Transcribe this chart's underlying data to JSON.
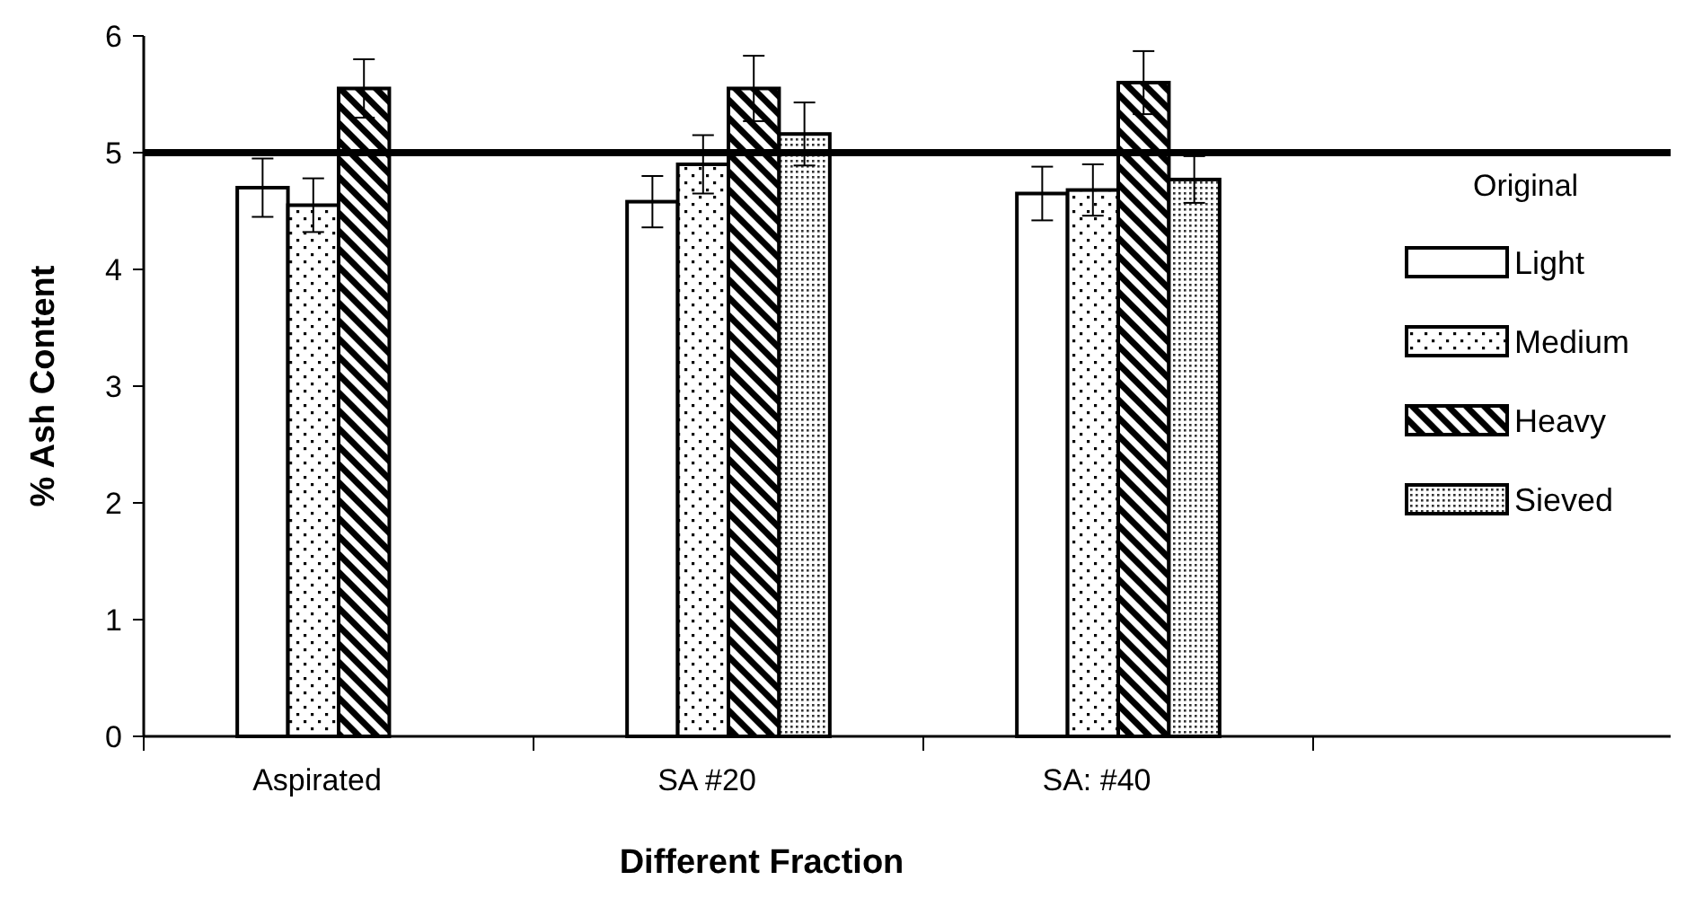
{
  "chart_data": {
    "type": "bar",
    "xlabel": "Different Fraction",
    "ylabel": "% Ash Content",
    "categories": [
      "Aspirated",
      "SA #20",
      "SA: #40",
      null
    ],
    "series": [
      {
        "name": "Light",
        "color": "#000000",
        "values": [
          4.7,
          4.58,
          4.65,
          null
        ],
        "errors": [
          0.25,
          0.22,
          0.23,
          null
        ]
      },
      {
        "name": "Medium",
        "color": "#000000",
        "values": [
          4.55,
          4.9,
          4.68,
          null
        ],
        "errors": [
          0.23,
          0.25,
          0.22,
          null
        ]
      },
      {
        "name": "Heavy",
        "color": "#000000",
        "values": [
          5.55,
          5.55,
          5.6,
          null
        ],
        "errors": [
          0.25,
          0.28,
          0.27,
          null
        ]
      },
      {
        "name": "Sieved",
        "color": "#000000",
        "values": [
          null,
          5.16,
          4.77,
          null
        ],
        "errors": [
          null,
          0.27,
          0.2,
          null
        ]
      }
    ],
    "ylim": [
      0,
      6
    ],
    "yticks": [
      0,
      1,
      2,
      3,
      4,
      5,
      6
    ],
    "ref_lines": [
      {
        "axis": "y",
        "value": 5,
        "label": "Original",
        "color": "#000000",
        "line_style": "solid"
      }
    ],
    "grid": false,
    "legend": "right"
  }
}
